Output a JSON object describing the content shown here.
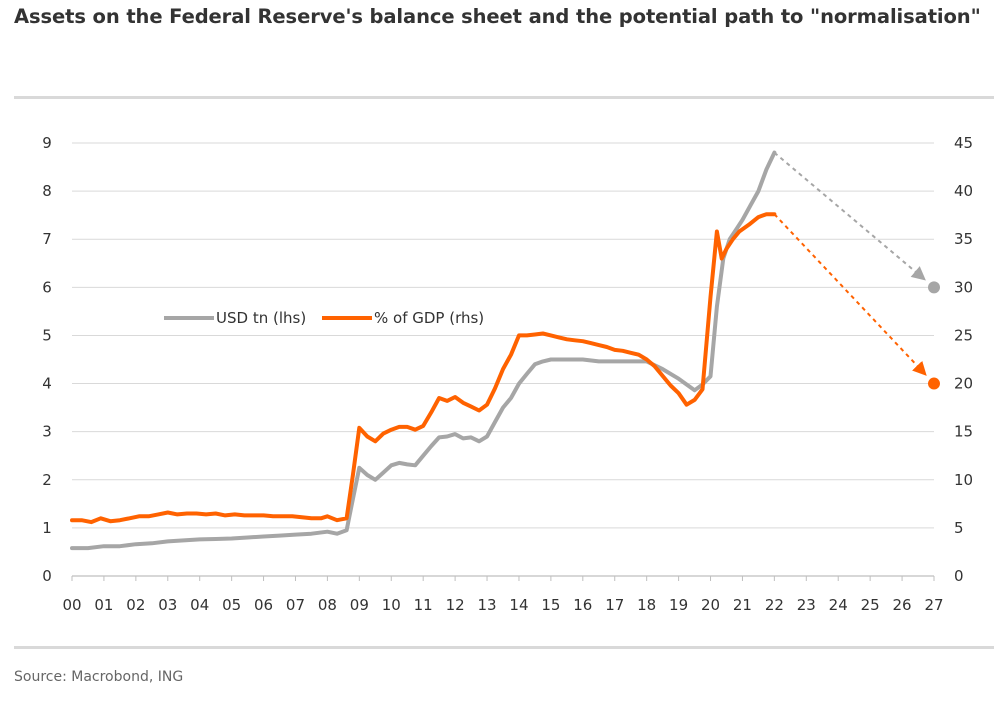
{
  "title": "Assets on the Federal Reserve's balance sheet and the potential path to \"normalisation\"",
  "source": "Source: Macrobond, ING",
  "chart_data": {
    "type": "line",
    "x_tick_labels": [
      "00",
      "01",
      "02",
      "03",
      "04",
      "05",
      "06",
      "07",
      "08",
      "09",
      "10",
      "11",
      "12",
      "13",
      "14",
      "15",
      "16",
      "17",
      "18",
      "19",
      "20",
      "21",
      "22",
      "23",
      "24",
      "25",
      "26",
      "27"
    ],
    "y_left": {
      "ticks": [
        "0",
        "1",
        "2",
        "3",
        "4",
        "5",
        "6",
        "7",
        "8",
        "9"
      ],
      "ylim": [
        0,
        9
      ]
    },
    "y_right": {
      "ticks": [
        "0",
        "5",
        "10",
        "15",
        "20",
        "25",
        "30",
        "35",
        "40",
        "45"
      ],
      "ylim": [
        0,
        45
      ]
    },
    "grid": true,
    "legend_position": "center-left",
    "colors": {
      "usd": "#a6a6a6",
      "gdp": "#ff6200"
    },
    "series": [
      {
        "name": "USD tn (lhs)",
        "axis": "left",
        "x": [
          2000.0,
          2000.5,
          2001.0,
          2001.5,
          2002.0,
          2002.5,
          2003.0,
          2003.5,
          2004.0,
          2004.5,
          2005.0,
          2005.5,
          2006.0,
          2006.5,
          2007.0,
          2007.5,
          2008.0,
          2008.3,
          2008.6,
          2008.8,
          2009.0,
          2009.25,
          2009.5,
          2009.75,
          2010.0,
          2010.25,
          2010.5,
          2010.75,
          2011.0,
          2011.25,
          2011.5,
          2011.75,
          2012.0,
          2012.25,
          2012.5,
          2012.75,
          2013.0,
          2013.25,
          2013.5,
          2013.75,
          2014.0,
          2014.25,
          2014.5,
          2014.75,
          2015.0,
          2015.5,
          2016.0,
          2016.5,
          2017.0,
          2017.5,
          2018.0,
          2018.5,
          2019.0,
          2019.25,
          2019.5,
          2019.75,
          2020.0,
          2020.2,
          2020.4,
          2020.6,
          2020.8,
          2021.0,
          2021.25,
          2021.5,
          2021.75,
          2022.0
        ],
        "values": [
          0.58,
          0.58,
          0.62,
          0.62,
          0.66,
          0.68,
          0.72,
          0.74,
          0.76,
          0.77,
          0.78,
          0.8,
          0.82,
          0.84,
          0.86,
          0.88,
          0.92,
          0.88,
          0.95,
          1.6,
          2.25,
          2.1,
          2.0,
          2.15,
          2.3,
          2.35,
          2.32,
          2.3,
          2.5,
          2.7,
          2.88,
          2.9,
          2.95,
          2.86,
          2.88,
          2.8,
          2.9,
          3.2,
          3.5,
          3.7,
          4.0,
          4.2,
          4.4,
          4.46,
          4.5,
          4.5,
          4.5,
          4.46,
          4.46,
          4.46,
          4.46,
          4.3,
          4.1,
          3.98,
          3.86,
          3.98,
          4.15,
          5.6,
          6.6,
          7.0,
          7.2,
          7.4,
          7.7,
          8.0,
          8.45,
          8.8
        ]
      },
      {
        "name": "% of GDP (rhs)",
        "axis": "right",
        "x": [
          2000.0,
          2000.3,
          2000.6,
          2000.9,
          2001.2,
          2001.5,
          2001.8,
          2002.1,
          2002.4,
          2002.7,
          2003.0,
          2003.3,
          2003.6,
          2003.9,
          2004.2,
          2004.5,
          2004.8,
          2005.1,
          2005.4,
          2005.7,
          2006.0,
          2006.3,
          2006.6,
          2006.9,
          2007.2,
          2007.5,
          2007.8,
          2008.0,
          2008.3,
          2008.6,
          2008.8,
          2009.0,
          2009.25,
          2009.5,
          2009.75,
          2010.0,
          2010.25,
          2010.5,
          2010.75,
          2011.0,
          2011.25,
          2011.5,
          2011.75,
          2012.0,
          2012.25,
          2012.5,
          2012.75,
          2013.0,
          2013.25,
          2013.5,
          2013.75,
          2014.0,
          2014.25,
          2014.5,
          2014.75,
          2015.0,
          2015.25,
          2015.5,
          2015.75,
          2016.0,
          2016.25,
          2016.5,
          2016.75,
          2017.0,
          2017.25,
          2017.5,
          2017.75,
          2018.0,
          2018.25,
          2018.5,
          2018.75,
          2019.0,
          2019.25,
          2019.5,
          2019.75,
          2020.0,
          2020.2,
          2020.35,
          2020.5,
          2020.7,
          2020.9,
          2021.2,
          2021.5,
          2021.75,
          2022.0
        ],
        "values": [
          5.8,
          5.8,
          5.6,
          6.0,
          5.7,
          5.8,
          6.0,
          6.2,
          6.2,
          6.4,
          6.6,
          6.4,
          6.5,
          6.5,
          6.4,
          6.5,
          6.3,
          6.4,
          6.3,
          6.3,
          6.3,
          6.2,
          6.2,
          6.2,
          6.1,
          6.0,
          6.0,
          6.2,
          5.8,
          6.0,
          10.5,
          15.4,
          14.5,
          14.0,
          14.8,
          15.2,
          15.5,
          15.5,
          15.2,
          15.6,
          17.0,
          18.5,
          18.2,
          18.6,
          18.0,
          17.6,
          17.2,
          17.8,
          19.5,
          21.5,
          23.0,
          25.0,
          25.0,
          25.1,
          25.2,
          25.0,
          24.8,
          24.6,
          24.5,
          24.4,
          24.2,
          24.0,
          23.8,
          23.5,
          23.4,
          23.2,
          23.0,
          22.5,
          21.8,
          20.8,
          19.8,
          19.0,
          17.8,
          18.3,
          19.4,
          29.0,
          35.8,
          33.0,
          34.0,
          35.0,
          35.8,
          36.5,
          37.3,
          37.6,
          37.6
        ]
      }
    ],
    "projections": [
      {
        "series": "USD tn (lhs)",
        "axis": "left",
        "from": [
          2022.0,
          8.8
        ],
        "to": [
          2027.0,
          6.0
        ]
      },
      {
        "series": "% of GDP (rhs)",
        "axis": "right",
        "from": [
          2022.0,
          37.6
        ],
        "to": [
          2027.0,
          20.0
        ]
      }
    ]
  }
}
